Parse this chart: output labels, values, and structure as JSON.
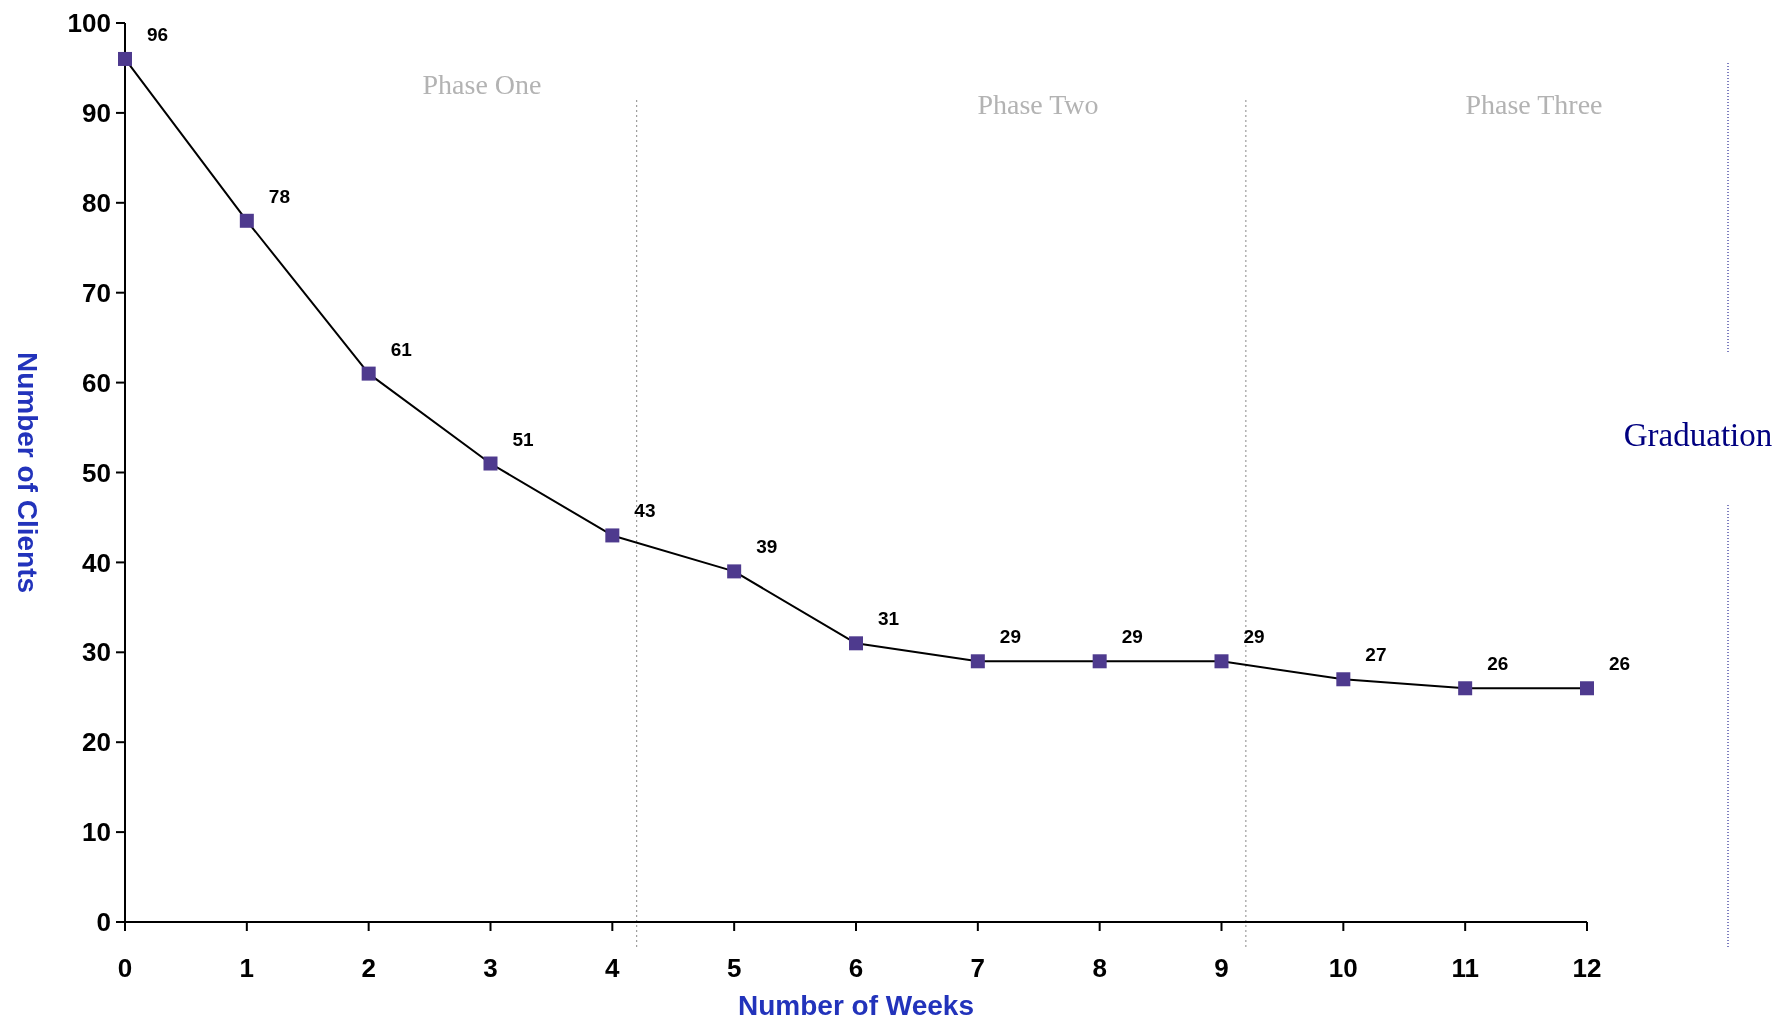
{
  "chart_data": {
    "type": "line",
    "xlabel": "Number of Weeks",
    "ylabel": "Number of Clients",
    "x": [
      0,
      1,
      2,
      3,
      4,
      5,
      6,
      7,
      8,
      9,
      10,
      11,
      12
    ],
    "series": [
      {
        "color": "#4e3a8e",
        "values": [
          96,
          78,
          61,
          51,
          43,
          39,
          31,
          29,
          29,
          29,
          27,
          26,
          26
        ]
      }
    ],
    "xlim": [
      0,
      12
    ],
    "xticks": [
      0,
      1,
      2,
      3,
      4,
      5,
      6,
      7,
      8,
      9,
      10,
      11,
      12
    ],
    "ylim": [
      0,
      100
    ],
    "yticks": [
      0,
      10,
      20,
      30,
      40,
      50,
      60,
      70,
      80,
      90,
      100
    ],
    "marker": "square",
    "line_style": "solid",
    "data_labels": true,
    "ref_lines": [
      {
        "axis": "x",
        "value": 4.2,
        "color": "#888888",
        "line_style": "dotted"
      },
      {
        "axis": "x",
        "value": 9.2,
        "color": "#888888",
        "line_style": "dotted"
      }
    ],
    "annotations": [
      "Phase One",
      "Phase Two",
      "Phase Three",
      "Graduation"
    ]
  }
}
